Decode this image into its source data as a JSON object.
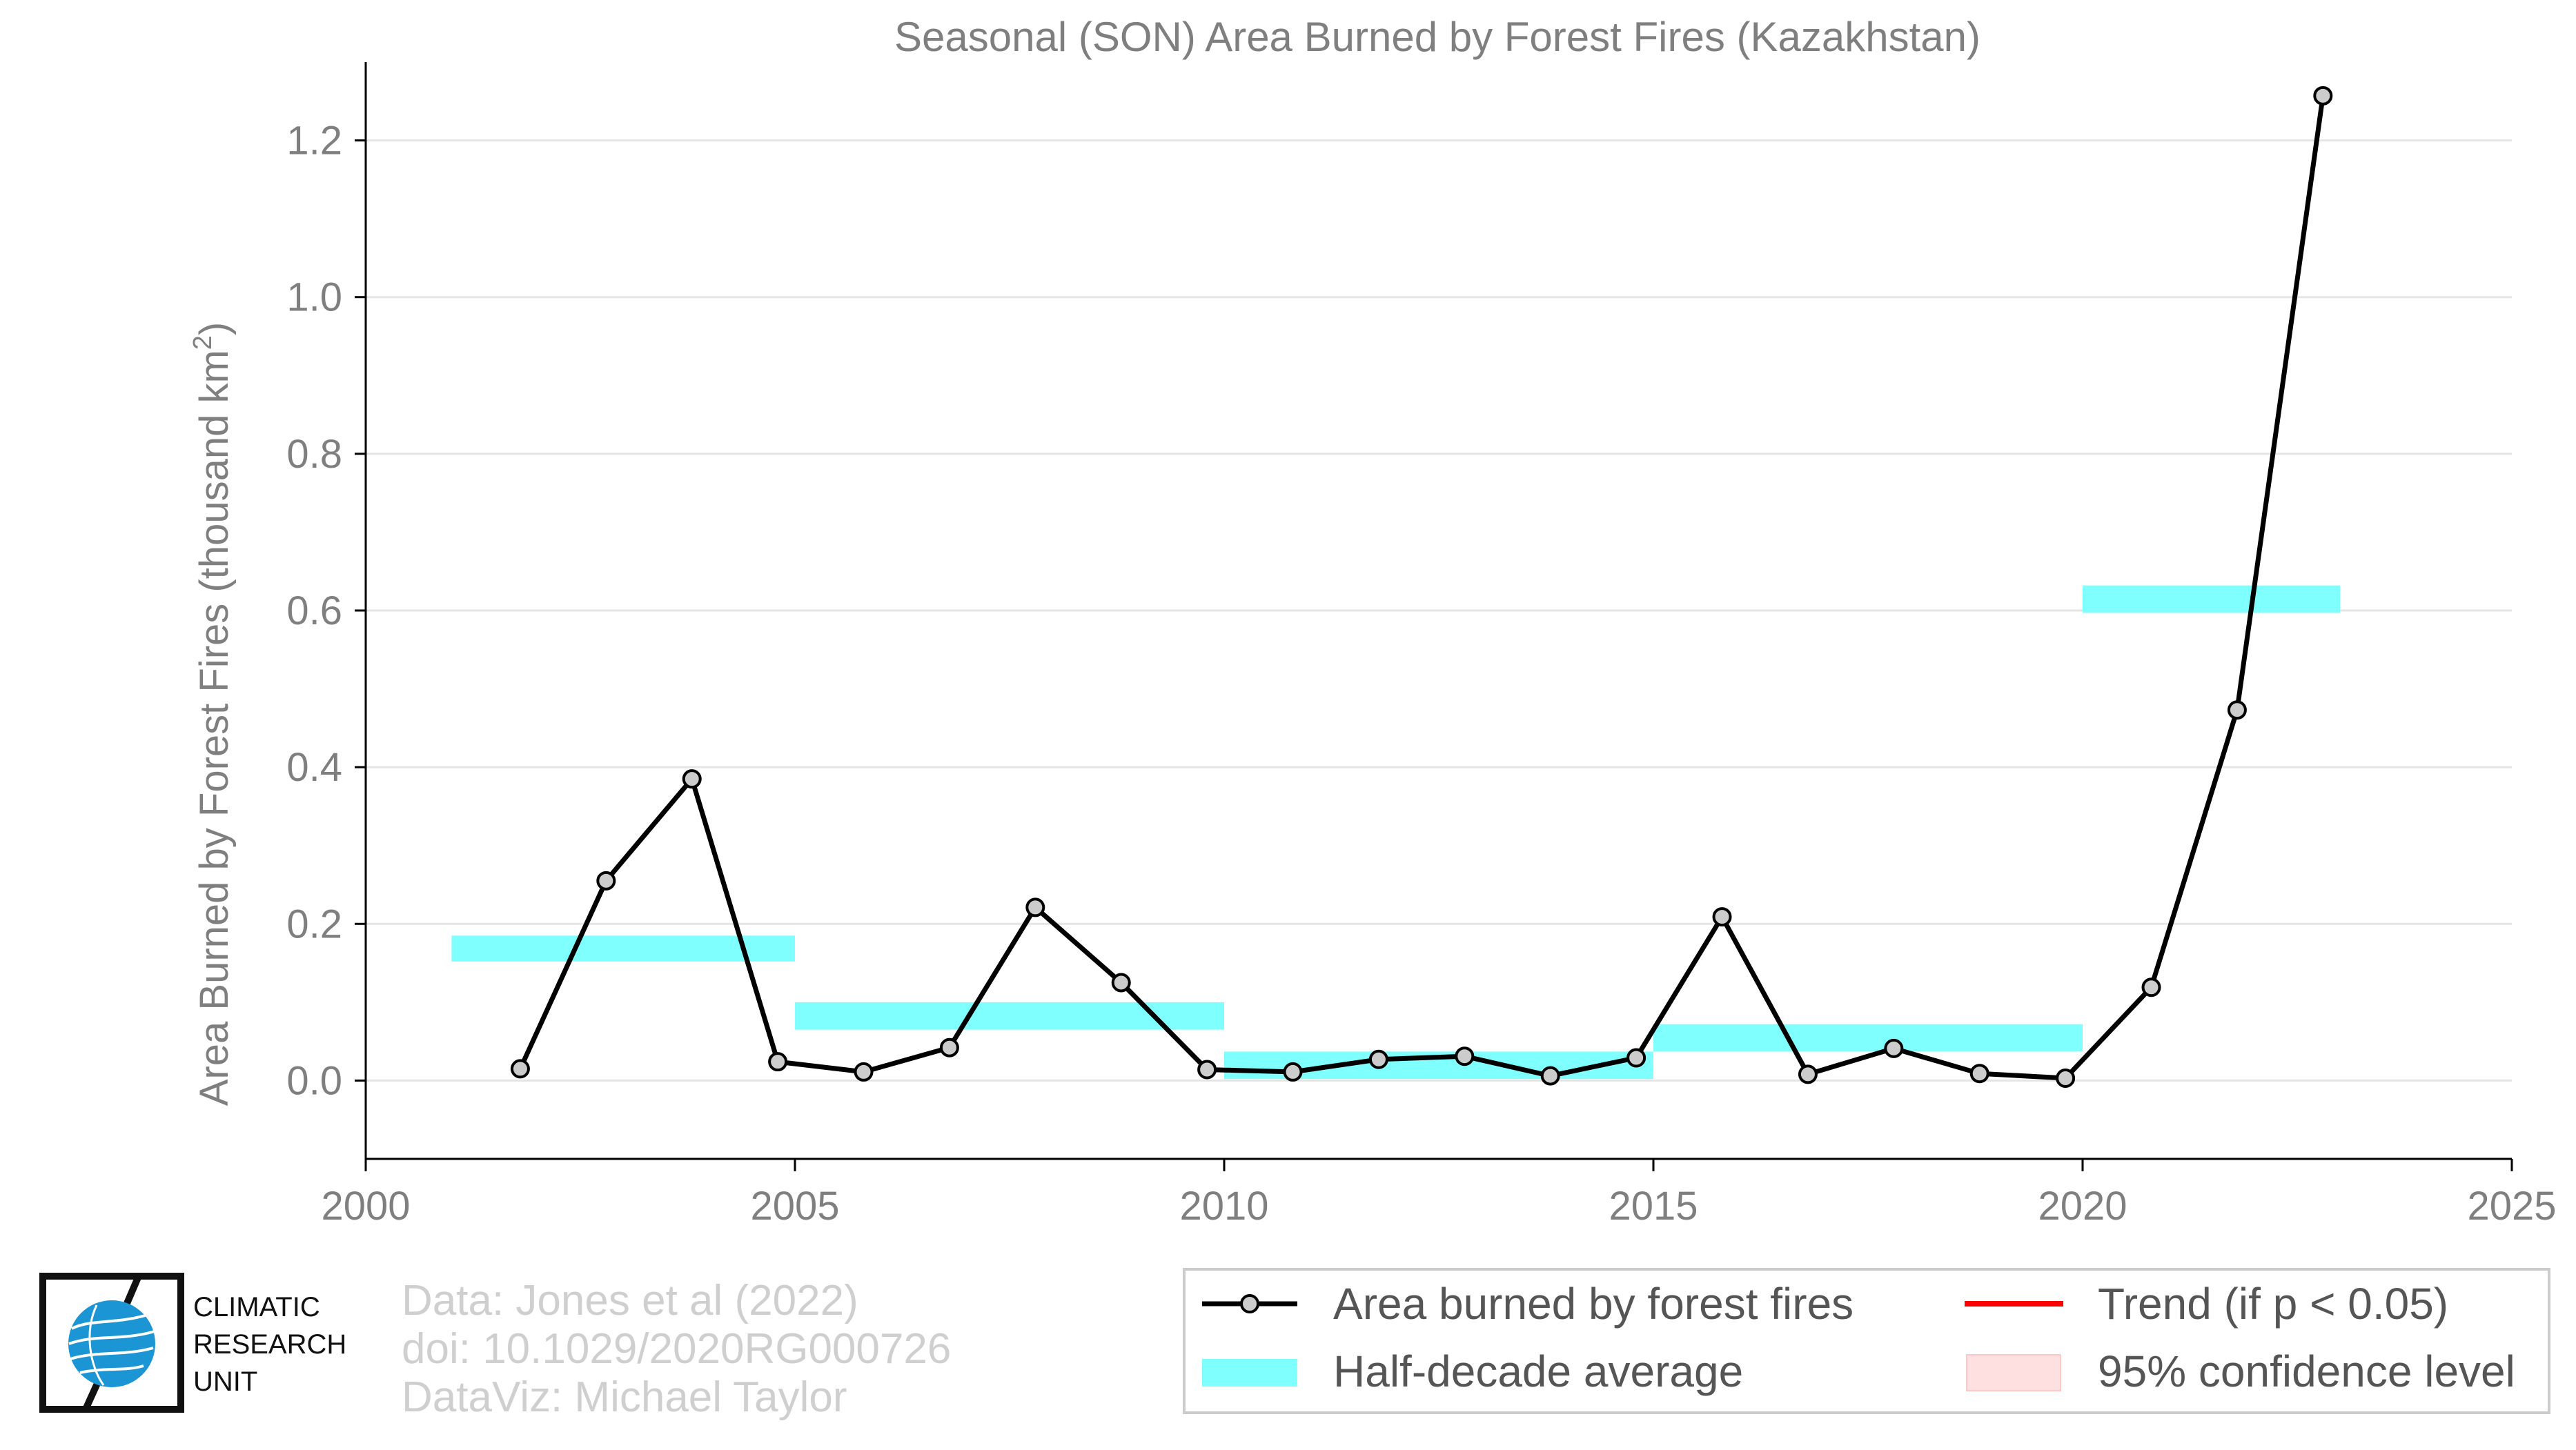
{
  "chart_data": {
    "type": "line",
    "title": "Seasonal (SON) Area Burned by Forest Fires (Kazakhstan)",
    "ylabel_main": "Area Burned by Forest Fires (thousand km",
    "ylabel_sup": "2",
    "ylabel_close": ")",
    "xlim": [
      2000,
      2025
    ],
    "ylim": [
      -0.1,
      1.3
    ],
    "xticks": [
      2000,
      2005,
      2010,
      2015,
      2020,
      2025
    ],
    "yticks": [
      "0.0",
      "0.2",
      "0.4",
      "0.6",
      "0.8",
      "1.0",
      "1.2"
    ],
    "grid": "horizontal",
    "series": [
      {
        "name": "Area burned by forest fires",
        "color": "#000000",
        "x": [
          2001.8,
          2002.8,
          2003.8,
          2004.8,
          2005.8,
          2006.8,
          2007.8,
          2008.8,
          2009.8,
          2010.8,
          2011.8,
          2012.8,
          2013.8,
          2014.8,
          2015.8,
          2016.8,
          2017.8,
          2018.8,
          2019.8,
          2020.8,
          2021.8,
          2022.8
        ],
        "y": [
          0.015,
          0.255,
          0.385,
          0.024,
          0.011,
          0.042,
          0.221,
          0.125,
          0.014,
          0.011,
          0.027,
          0.031,
          0.006,
          0.029,
          0.209,
          0.008,
          0.041,
          0.009,
          0.003,
          0.119,
          0.473,
          1.257
        ]
      }
    ],
    "half_decade_averages": [
      {
        "x0": 2001,
        "x1": 2005,
        "y0": 0.152,
        "y1": 0.185
      },
      {
        "x0": 2005,
        "x1": 2010,
        "y0": 0.065,
        "y1": 0.1
      },
      {
        "x0": 2010,
        "x1": 2015,
        "y0": 0.002,
        "y1": 0.037
      },
      {
        "x0": 2015,
        "x1": 2020,
        "y0": 0.037,
        "y1": 0.072
      },
      {
        "x0": 2020,
        "x1": 2023,
        "y0": 0.597,
        "y1": 0.632
      }
    ],
    "colors": {
      "half_decade": "#80ffff",
      "trend": "#ff0000",
      "confidence": "#ffe0e0",
      "marker_fill": "#cccccc",
      "grid": "#e5e5e5",
      "axis": "#000000"
    },
    "legend_position": "bottom-right"
  },
  "legend": {
    "series_label": "Area burned by forest fires",
    "average_label": "Half-decade average",
    "trend_label": "Trend (if p < 0.05)",
    "confidence_label": "95% confidence level"
  },
  "credits": {
    "line1": "Data: Jones et al (2022)",
    "line2": "doi: 10.1029/2020RG000726",
    "line3": "DataViz: Michael Taylor"
  },
  "logo": {
    "line1": "CLIMATIC",
    "line2": "RESEARCH",
    "line3": "UNIT",
    "icon": "globe-icon",
    "accent": "#1b95d3"
  }
}
